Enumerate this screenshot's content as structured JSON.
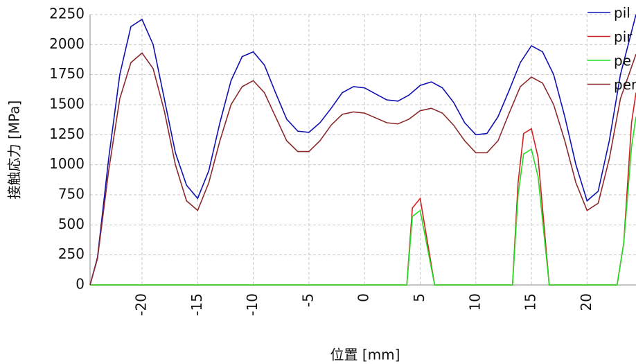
{
  "chart_data": {
    "type": "line",
    "xlabel": "位置 [mm]",
    "ylabel": "接触応力 [MPa]",
    "xlim": [
      -24.67,
      24.4
    ],
    "ylim": [
      0,
      2250
    ],
    "xticks": [
      -20,
      -15,
      -10,
      -5,
      0,
      5,
      10,
      15,
      20
    ],
    "yticks": [
      0,
      250,
      500,
      750,
      1000,
      1250,
      1500,
      1750,
      2000,
      2250
    ],
    "grid": true,
    "legend": "upper right",
    "series": [
      {
        "name": "pil",
        "color": "#1010b0",
        "x": [
          -24.67,
          -24,
          -23,
          -22,
          -21,
          -20,
          -19,
          -18,
          -17,
          -16,
          -15,
          -14,
          -13,
          -12,
          -11,
          -10,
          -9,
          -8,
          -7,
          -6,
          -5,
          -4,
          -3,
          -2,
          -1,
          0,
          1,
          2,
          3,
          4,
          5,
          6,
          7,
          8,
          9,
          10,
          11,
          12,
          13,
          14,
          15,
          16,
          17,
          18,
          19,
          20,
          21,
          22,
          23,
          24.4
        ],
        "values": [
          0,
          230,
          1050,
          1750,
          2150,
          2210,
          2000,
          1550,
          1100,
          830,
          720,
          950,
          1350,
          1700,
          1900,
          1940,
          1830,
          1600,
          1380,
          1280,
          1270,
          1350,
          1470,
          1600,
          1650,
          1640,
          1590,
          1540,
          1530,
          1580,
          1660,
          1690,
          1640,
          1520,
          1350,
          1250,
          1260,
          1400,
          1620,
          1850,
          1990,
          1940,
          1750,
          1400,
          1000,
          700,
          780,
          1200,
          1750,
          2250
        ]
      },
      {
        "name": "pir",
        "color": "#d02020",
        "x": [
          -24.67,
          3.8,
          4.3,
          5,
          6.3,
          13.3,
          13.8,
          14.3,
          15,
          15.6,
          16.6,
          22.7,
          23.3,
          24,
          24.4
        ],
        "values": [
          0,
          0,
          640,
          720,
          0,
          0,
          850,
          1260,
          1300,
          1060,
          0,
          0,
          350,
          1350,
          1600
        ]
      },
      {
        "name": "pe",
        "color": "#22dd22",
        "x": [
          -24.67,
          3.8,
          4.3,
          5,
          6.3,
          13.3,
          13.8,
          14.3,
          15,
          15.6,
          16.6,
          22.7,
          23.3,
          24,
          24.4
        ],
        "values": [
          0,
          0,
          570,
          620,
          0,
          0,
          750,
          1090,
          1130,
          900,
          0,
          0,
          350,
          1150,
          1400
        ]
      },
      {
        "name": "per",
        "color": "#8b2a2a",
        "x": [
          -24.67,
          -24,
          -23,
          -22,
          -21,
          -20,
          -19,
          -18,
          -17,
          -16,
          -15,
          -14,
          -13,
          -12,
          -11,
          -10,
          -9,
          -8,
          -7,
          -6,
          -5,
          -4,
          -3,
          -2,
          -1,
          0,
          1,
          2,
          3,
          4,
          5,
          6,
          7,
          8,
          9,
          10,
          11,
          12,
          13,
          14,
          15,
          16,
          17,
          18,
          19,
          20,
          21,
          22,
          23,
          24.4
        ],
        "values": [
          0,
          220,
          950,
          1550,
          1850,
          1930,
          1800,
          1450,
          1000,
          700,
          620,
          850,
          1200,
          1500,
          1650,
          1700,
          1600,
          1400,
          1200,
          1110,
          1110,
          1200,
          1330,
          1420,
          1440,
          1430,
          1390,
          1350,
          1340,
          1380,
          1450,
          1470,
          1430,
          1330,
          1200,
          1100,
          1100,
          1200,
          1430,
          1650,
          1730,
          1680,
          1500,
          1200,
          850,
          620,
          680,
          1050,
          1550,
          1920
        ]
      }
    ]
  }
}
